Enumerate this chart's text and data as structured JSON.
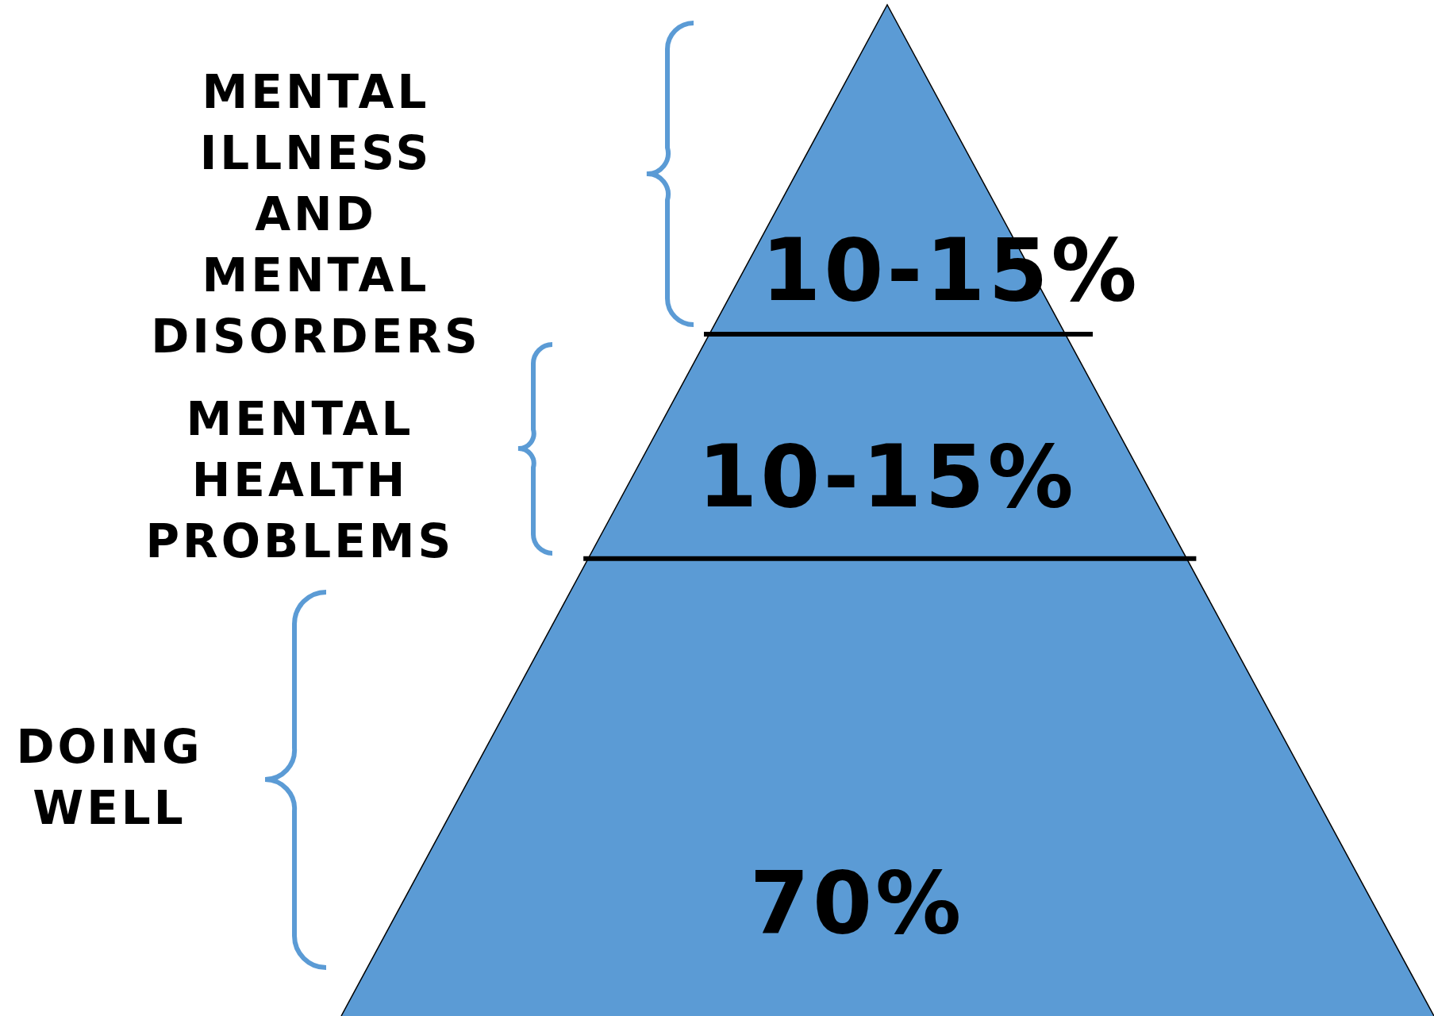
{
  "chart_data": {
    "type": "other",
    "categories": [
      "MENTAL ILLNESS AND MENTAL DISORDERS",
      "MENTAL HEALTH PROBLEMS",
      "DOING WELL"
    ],
    "values": [
      null,
      null,
      70
    ],
    "value_labels": [
      "10-15%",
      "10-15%",
      "70%"
    ],
    "color": "#5b9bd5"
  }
}
